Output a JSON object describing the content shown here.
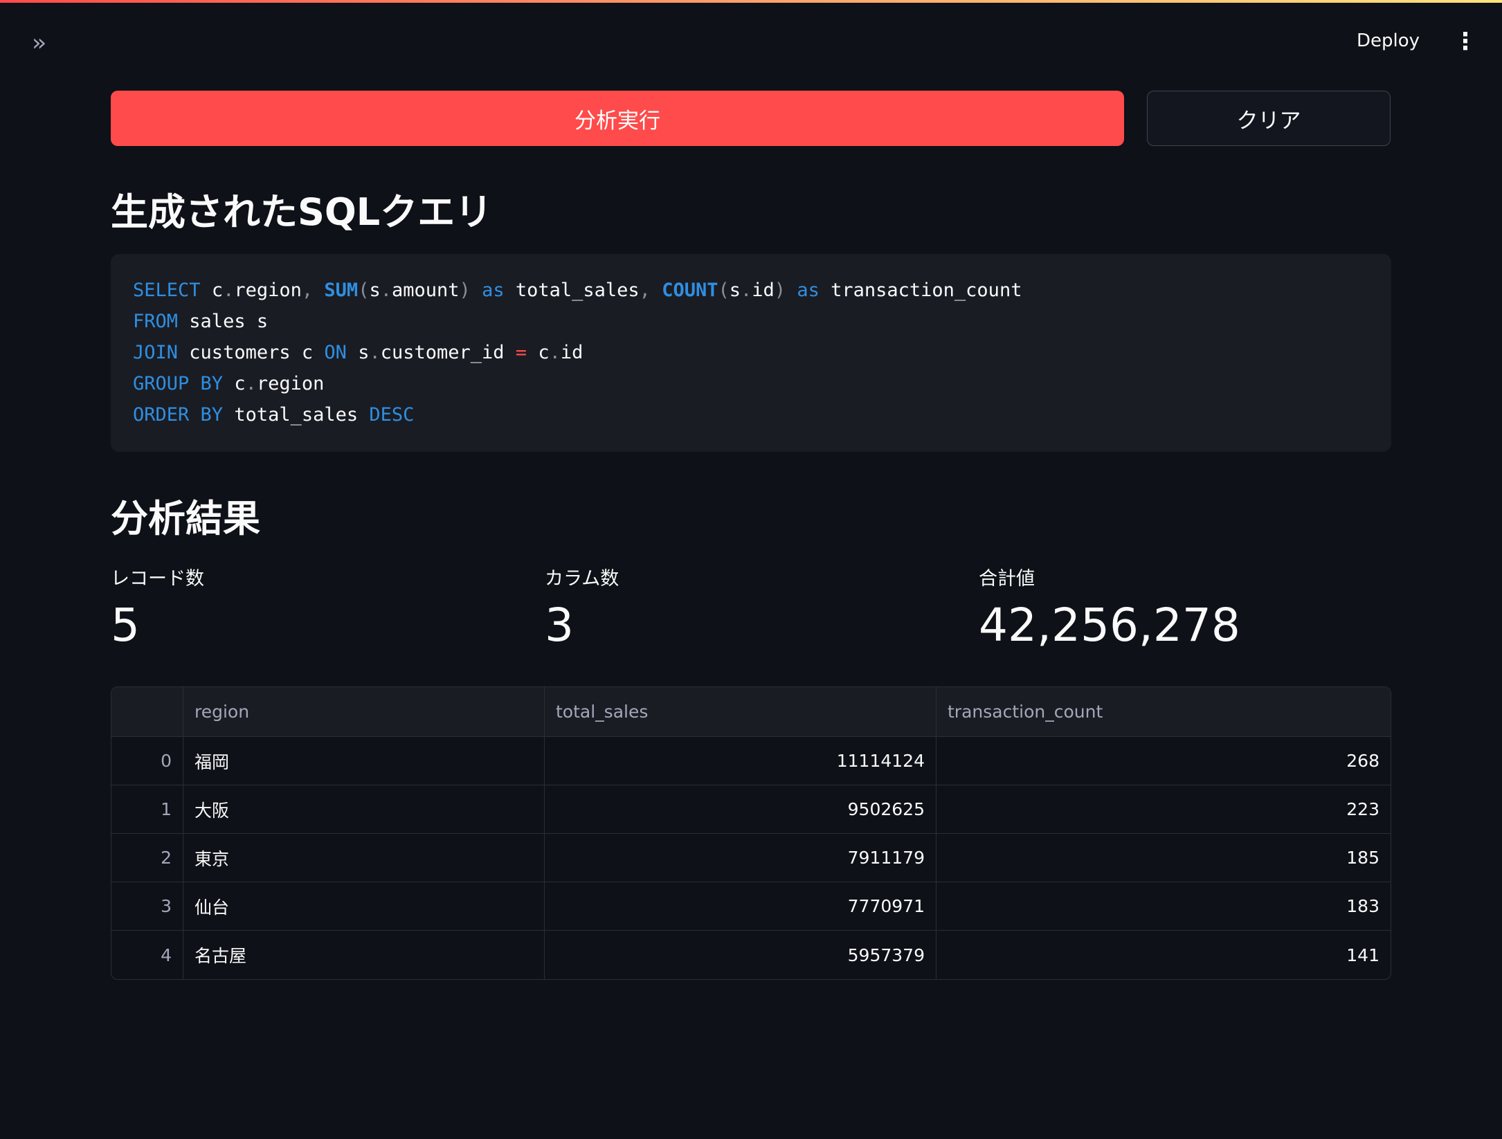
{
  "header": {
    "deploy_label": "Deploy",
    "sidebar_toggle_icon": "double-chevron-right-icon",
    "menu_icon": "vertical-ellipsis-icon"
  },
  "buttons": {
    "run": "分析実行",
    "clear": "クリア",
    "run_color": "#ff4b4b"
  },
  "sql_section": {
    "title": "生成されたSQLクエリ",
    "query": "SELECT c.region, SUM(s.amount) as total_sales, COUNT(s.id) as transaction_count\nFROM sales s\nJOIN customers c ON s.customer_id = c.id\nGROUP BY c.region\nORDER BY total_sales DESC"
  },
  "results": {
    "title": "分析結果",
    "metrics": [
      {
        "label": "レコード数",
        "value": "5"
      },
      {
        "label": "カラム数",
        "value": "3"
      },
      {
        "label": "合計値",
        "value": "42,256,278"
      }
    ],
    "table": {
      "columns": [
        "",
        "region",
        "total_sales",
        "transaction_count"
      ],
      "rows": [
        [
          "0",
          "福岡",
          "11114124",
          "268"
        ],
        [
          "1",
          "大阪",
          "9502625",
          "223"
        ],
        [
          "2",
          "東京",
          "7911179",
          "185"
        ],
        [
          "3",
          "仙台",
          "7770971",
          "183"
        ],
        [
          "4",
          "名古屋",
          "5957379",
          "141"
        ]
      ]
    }
  }
}
